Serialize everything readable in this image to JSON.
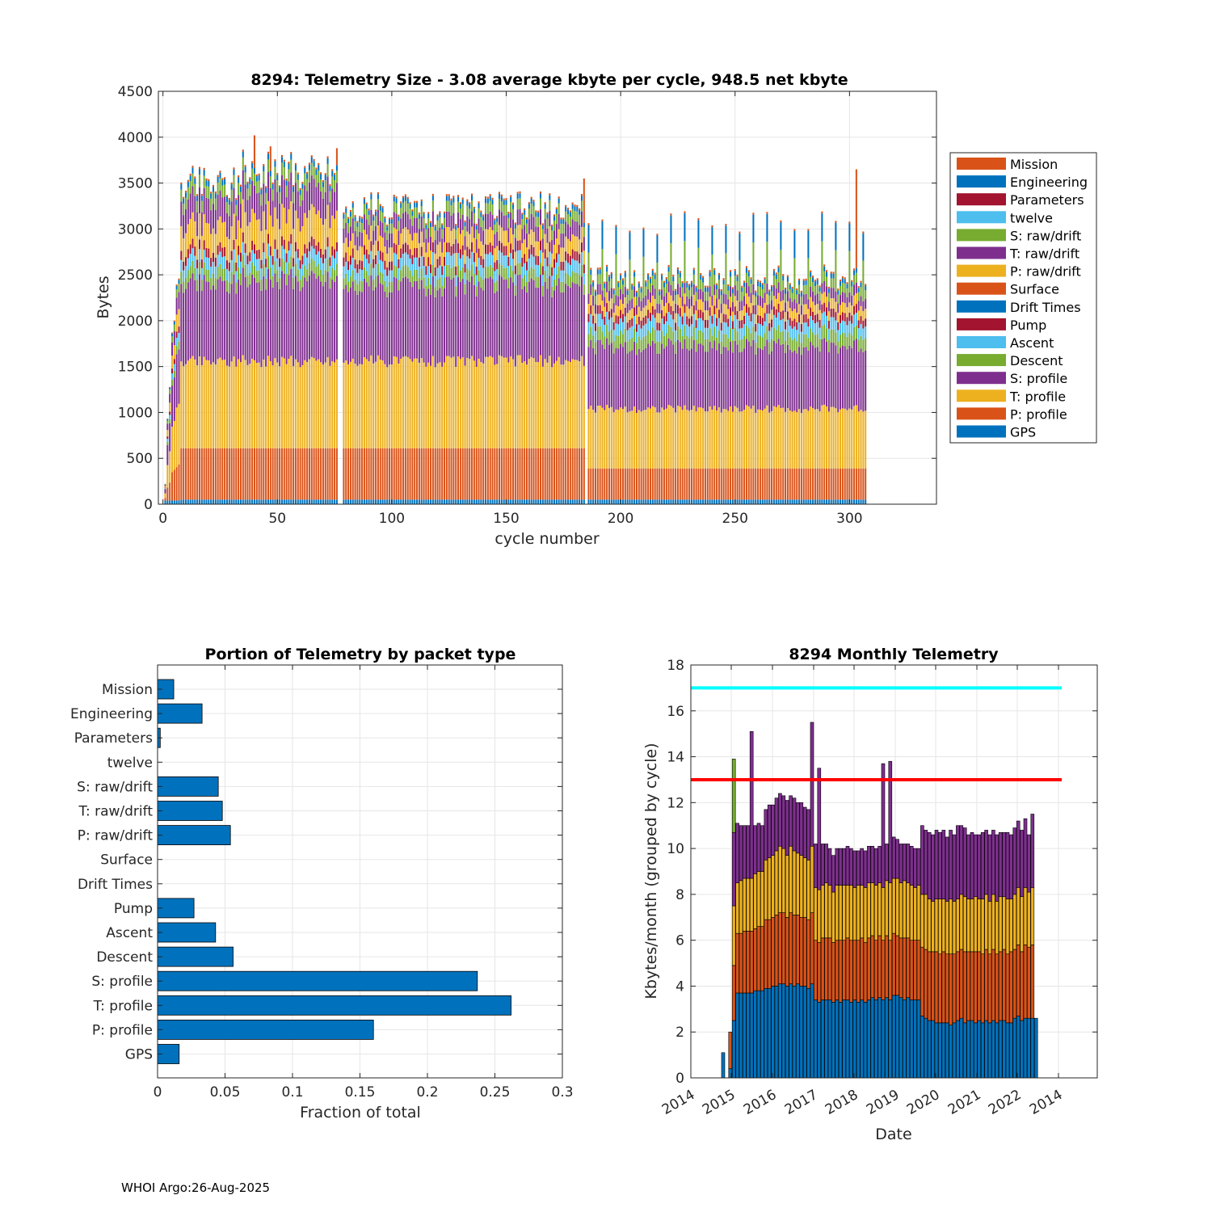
{
  "colors": {
    "blue": "#0072BD",
    "orange": "#D95319",
    "yellow": "#EDB120",
    "purple": "#7E2F8E",
    "green": "#77AC30",
    "lightblue": "#4DBEEE",
    "darkred": "#A2142F",
    "cyan_line": "#00FFFF",
    "red_line": "#FF0000"
  },
  "footer": "WHOI Argo:26-Aug-2025",
  "chart_data": [
    {
      "type": "bar",
      "stacked": true,
      "title": "8294: Telemetry Size - 3.08 average kbyte per cycle,  948.5 net kbyte",
      "xlabel": "cycle number",
      "ylabel": "Bytes",
      "xlim": [
        -2,
        338
      ],
      "ylim": [
        0,
        4500
      ],
      "xticks": [
        0,
        50,
        100,
        150,
        200,
        250,
        300
      ],
      "yticks": [
        0,
        500,
        1000,
        1500,
        2000,
        2500,
        3000,
        3500,
        4000,
        4500
      ],
      "legend_location": "outside-right",
      "legend": [
        "Mission",
        "Engineering",
        "Parameters",
        "twelve",
        "S: raw/drift",
        "T: raw/drift",
        "P: raw/drift",
        "Surface",
        "Drift Times",
        "Pump",
        "Ascent",
        "Descent",
        "S: profile",
        "T: profile",
        "P: profile",
        "GPS"
      ],
      "legend_colors": [
        "#D95319",
        "#0072BD",
        "#A2142F",
        "#4DBEEE",
        "#77AC30",
        "#7E2F8E",
        "#EDB120",
        "#D95319",
        "#0072BD",
        "#A2142F",
        "#4DBEEE",
        "#77AC30",
        "#7E2F8E",
        "#EDB120",
        "#D95319",
        "#0072BD"
      ],
      "cycles": "1-307",
      "segment_order": [
        "GPS",
        "P: profile",
        "T: profile",
        "S: profile",
        "Descent",
        "Ascent",
        "Pump",
        "P: raw/drift",
        "T: raw/drift",
        "S: raw/drift",
        "Parameters",
        "Engineering",
        "Mission"
      ],
      "segment_colors": [
        "#0072BD",
        "#D95319",
        "#EDB120",
        "#7E2F8E",
        "#77AC30",
        "#4DBEEE",
        "#A2142F",
        "#EDB120",
        "#7E2F8E",
        "#77AC30",
        "#A2142F",
        "#0072BD",
        "#D95319"
      ],
      "phases": [
        {
          "cycles": [
            8,
            76
          ],
          "layers": [
            50,
            560,
            950,
            850,
            130,
            130,
            100,
            270,
            270,
            130,
            0,
            60,
            20
          ]
        },
        {
          "cycles": [
            79,
            184
          ],
          "layers": [
            50,
            560,
            950,
            820,
            120,
            130,
            100,
            160,
            160,
            110,
            0,
            50,
            20
          ]
        },
        {
          "cycles": [
            186,
            307
          ],
          "layers": [
            50,
            340,
            650,
            680,
            140,
            130,
            90,
            110,
            110,
            100,
            0,
            50,
            20
          ]
        }
      ],
      "profile_peaks": [
        [
          40,
          4020
        ],
        [
          47,
          3900
        ],
        [
          76,
          3880
        ],
        [
          184,
          3550
        ],
        [
          303,
          3650
        ]
      ]
    },
    {
      "type": "bar",
      "orientation": "horizontal",
      "title": "Portion of Telemetry by packet type",
      "xlabel": "Fraction of total",
      "xlim": [
        0,
        0.3
      ],
      "xticks": [
        0,
        0.05,
        0.1,
        0.15,
        0.2,
        0.25,
        0.3
      ],
      "xtick_labels": [
        "0",
        "0.05",
        "0.1",
        "0.15",
        "0.2",
        "0.25",
        "0.3"
      ],
      "categories": [
        "Mission",
        "Engineering",
        "Parameters",
        "twelve",
        "S: raw/drift",
        "T: raw/drift",
        "P: raw/drift",
        "Surface",
        "Drift Times",
        "Pump",
        "Ascent",
        "Descent",
        "S: profile",
        "T: profile",
        "P: profile",
        "GPS"
      ],
      "values": [
        0.012,
        0.033,
        0.002,
        0,
        0.045,
        0.048,
        0.054,
        0,
        0,
        0.027,
        0.043,
        0.056,
        0.237,
        0.262,
        0.16,
        0.016
      ]
    },
    {
      "type": "bar",
      "stacked": true,
      "title": "8294 Monthly Telemetry",
      "xlabel": "Date",
      "ylabel": "Kbytes/month (grouped by cycle)",
      "ylim": [
        0,
        18
      ],
      "yticks": [
        0,
        2,
        4,
        6,
        8,
        10,
        12,
        14,
        16,
        18
      ],
      "xtick_labels": [
        "2014",
        "2015",
        "2016",
        "2017",
        "2018",
        "2019",
        "2020",
        "2021",
        "2022",
        "2014"
      ],
      "reference_lines": [
        {
          "value": 17,
          "color": "#00FFFF"
        },
        {
          "value": 13,
          "color": "#FF0000"
        }
      ],
      "segment_colors": [
        "#0072BD",
        "#D95319",
        "#EDB120",
        "#7E2F8E",
        "#77AC30"
      ],
      "monthly_bars": [
        {
          "i": 0,
          "s": [
            1.1
          ]
        },
        {
          "i": 2,
          "s": [
            0.4,
            1.6
          ]
        },
        {
          "i": 3,
          "s": [
            2.5,
            2.4,
            2.6,
            3.2,
            3.2
          ]
        },
        {
          "i": 4,
          "s": [
            3.7,
            2.6,
            2.2,
            2.6
          ]
        },
        {
          "i": 5,
          "s": [
            3.7,
            2.6,
            2.3,
            2.4
          ]
        },
        {
          "i": 6,
          "s": [
            3.7,
            2.7,
            2.3,
            2.3
          ]
        },
        {
          "i": 7,
          "s": [
            3.7,
            2.7,
            2.3,
            2.3
          ]
        },
        {
          "i": 8,
          "s": [
            3.7,
            2.7,
            2.3,
            6.4
          ]
        },
        {
          "i": 9,
          "s": [
            3.8,
            2.7,
            2.4,
            2.1
          ]
        },
        {
          "i": 10,
          "s": [
            3.8,
            2.8,
            2.4,
            2.1
          ]
        },
        {
          "i": 11,
          "s": [
            3.8,
            2.8,
            2.4,
            2.0
          ]
        },
        {
          "i": 12,
          "s": [
            3.9,
            3.0,
            2.6,
            2.2
          ]
        },
        {
          "i": 13,
          "s": [
            3.9,
            3.0,
            2.7,
            2.3
          ]
        },
        {
          "i": 14,
          "s": [
            4.0,
            3.0,
            2.7,
            2.2
          ]
        },
        {
          "i": 15,
          "s": [
            4.0,
            3.1,
            2.8,
            2.3
          ]
        },
        {
          "i": 16,
          "s": [
            4.1,
            3.1,
            2.9,
            2.3
          ]
        },
        {
          "i": 17,
          "s": [
            4.1,
            3.1,
            2.8,
            2.3
          ]
        },
        {
          "i": 18,
          "s": [
            4.0,
            3.0,
            2.7,
            2.4
          ]
        },
        {
          "i": 19,
          "s": [
            4.1,
            3.1,
            2.9,
            2.2
          ]
        },
        {
          "i": 20,
          "s": [
            4.0,
            3.1,
            2.8,
            2.3
          ]
        },
        {
          "i": 21,
          "s": [
            4.1,
            3.0,
            2.7,
            2.2
          ]
        },
        {
          "i": 22,
          "s": [
            4.0,
            3.0,
            2.7,
            2.3
          ]
        },
        {
          "i": 23,
          "s": [
            4.0,
            3.0,
            2.6,
            2.2
          ]
        },
        {
          "i": 24,
          "s": [
            3.9,
            3.0,
            2.6,
            2.2
          ]
        },
        {
          "i": 25,
          "s": [
            4.1,
            3.1,
            2.9,
            5.4
          ]
        },
        {
          "i": 26,
          "s": [
            3.4,
            2.6,
            2.3,
            1.9
          ]
        },
        {
          "i": 27,
          "s": [
            3.3,
            2.6,
            2.3,
            5.3
          ]
        },
        {
          "i": 28,
          "s": [
            3.4,
            2.7,
            2.3,
            1.8
          ]
        },
        {
          "i": 29,
          "s": [
            3.4,
            2.7,
            2.4,
            1.7
          ]
        },
        {
          "i": 30,
          "s": [
            3.4,
            2.7,
            2.3,
            1.6
          ]
        },
        {
          "i": 31,
          "s": [
            3.3,
            2.6,
            2.2,
            1.6
          ]
        },
        {
          "i": 32,
          "s": [
            3.4,
            2.6,
            2.4,
            1.6
          ]
        },
        {
          "i": 33,
          "s": [
            3.3,
            2.7,
            2.4,
            1.6
          ]
        },
        {
          "i": 34,
          "s": [
            3.4,
            2.6,
            2.4,
            1.6
          ]
        },
        {
          "i": 35,
          "s": [
            3.4,
            2.7,
            2.3,
            1.7
          ]
        },
        {
          "i": 36,
          "s": [
            3.3,
            2.7,
            2.4,
            1.6
          ]
        },
        {
          "i": 37,
          "s": [
            3.4,
            2.6,
            2.3,
            1.6
          ]
        },
        {
          "i": 38,
          "s": [
            3.3,
            2.7,
            2.4,
            1.5
          ]
        },
        {
          "i": 39,
          "s": [
            3.4,
            2.7,
            2.3,
            1.6
          ]
        },
        {
          "i": 40,
          "s": [
            3.3,
            2.6,
            2.4,
            1.6
          ]
        },
        {
          "i": 41,
          "s": [
            3.4,
            2.7,
            2.4,
            1.6
          ]
        },
        {
          "i": 42,
          "s": [
            3.5,
            2.7,
            2.3,
            1.6
          ]
        },
        {
          "i": 43,
          "s": [
            3.4,
            2.6,
            2.4,
            1.6
          ]
        },
        {
          "i": 44,
          "s": [
            3.5,
            2.7,
            2.3,
            1.6
          ]
        },
        {
          "i": 45,
          "s": [
            3.4,
            2.6,
            2.3,
            5.4
          ]
        },
        {
          "i": 46,
          "s": [
            3.5,
            2.7,
            2.4,
            1.6
          ]
        },
        {
          "i": 47,
          "s": [
            3.4,
            2.6,
            2.5,
            5.3
          ]
        },
        {
          "i": 48,
          "s": [
            3.6,
            2.7,
            2.4,
            1.8
          ]
        },
        {
          "i": 49,
          "s": [
            3.6,
            2.6,
            2.5,
            1.7
          ]
        },
        {
          "i": 50,
          "s": [
            3.5,
            2.6,
            2.4,
            1.7
          ]
        },
        {
          "i": 51,
          "s": [
            3.4,
            2.7,
            2.5,
            1.6
          ]
        },
        {
          "i": 52,
          "s": [
            3.5,
            2.6,
            2.4,
            1.7
          ]
        },
        {
          "i": 53,
          "s": [
            3.4,
            2.6,
            2.4,
            1.7
          ]
        },
        {
          "i": 54,
          "s": [
            3.4,
            2.6,
            2.3,
            1.7
          ]
        },
        {
          "i": 55,
          "s": [
            3.4,
            2.6,
            2.4,
            1.6
          ]
        },
        {
          "i": 56,
          "s": [
            2.7,
            3.0,
            2.3,
            3.0
          ]
        },
        {
          "i": 57,
          "s": [
            2.6,
            3.0,
            2.4,
            2.8
          ]
        },
        {
          "i": 58,
          "s": [
            2.5,
            3.0,
            2.3,
            2.9
          ]
        },
        {
          "i": 59,
          "s": [
            2.5,
            3.0,
            2.2,
            2.9
          ]
        },
        {
          "i": 60,
          "s": [
            2.4,
            3.1,
            2.3,
            3.0
          ]
        },
        {
          "i": 61,
          "s": [
            2.4,
            3.0,
            2.4,
            2.9
          ]
        },
        {
          "i": 62,
          "s": [
            2.4,
            3.1,
            2.3,
            3.0
          ]
        },
        {
          "i": 63,
          "s": [
            2.4,
            3.0,
            2.3,
            2.8
          ]
        },
        {
          "i": 64,
          "s": [
            2.3,
            3.1,
            2.4,
            3.0
          ]
        },
        {
          "i": 65,
          "s": [
            2.4,
            3.0,
            2.3,
            2.9
          ]
        },
        {
          "i": 66,
          "s": [
            2.5,
            3.0,
            2.3,
            3.2
          ]
        },
        {
          "i": 67,
          "s": [
            2.6,
            3.0,
            2.4,
            3.0
          ]
        },
        {
          "i": 68,
          "s": [
            2.4,
            3.1,
            2.4,
            3.0
          ]
        },
        {
          "i": 69,
          "s": [
            2.5,
            3.0,
            2.3,
            2.8
          ]
        },
        {
          "i": 70,
          "s": [
            2.5,
            3.0,
            2.3,
            2.9
          ]
        },
        {
          "i": 71,
          "s": [
            2.4,
            3.1,
            2.4,
            2.7
          ]
        },
        {
          "i": 72,
          "s": [
            2.5,
            3.0,
            2.3,
            2.8
          ]
        },
        {
          "i": 73,
          "s": [
            2.4,
            3.0,
            2.4,
            2.9
          ]
        },
        {
          "i": 74,
          "s": [
            2.5,
            3.1,
            2.4,
            2.8
          ]
        },
        {
          "i": 75,
          "s": [
            2.4,
            3.0,
            2.3,
            2.9
          ]
        },
        {
          "i": 76,
          "s": [
            2.5,
            3.1,
            2.4,
            2.8
          ]
        },
        {
          "i": 77,
          "s": [
            2.4,
            3.0,
            2.3,
            2.9
          ]
        },
        {
          "i": 78,
          "s": [
            2.5,
            3.0,
            2.4,
            2.8
          ]
        },
        {
          "i": 79,
          "s": [
            2.5,
            3.1,
            2.3,
            2.8
          ]
        },
        {
          "i": 80,
          "s": [
            2.4,
            3.0,
            2.4,
            2.9
          ]
        },
        {
          "i": 81,
          "s": [
            2.4,
            3.1,
            2.3,
            2.8
          ]
        },
        {
          "i": 82,
          "s": [
            2.6,
            3.0,
            2.4,
            2.9
          ]
        },
        {
          "i": 83,
          "s": [
            2.7,
            3.1,
            2.5,
            2.9
          ]
        },
        {
          "i": 84,
          "s": [
            2.5,
            3.0,
            2.4,
            2.9
          ]
        },
        {
          "i": 85,
          "s": [
            2.6,
            3.2,
            2.5,
            3.0
          ]
        },
        {
          "i": 86,
          "s": [
            2.6,
            3.1,
            2.4,
            2.5
          ]
        },
        {
          "i": 87,
          "s": [
            2.6,
            3.2,
            2.5,
            3.2
          ]
        },
        {
          "i": 88,
          "s": [
            2.6
          ]
        }
      ],
      "monthly_bar_count": 89
    }
  ]
}
